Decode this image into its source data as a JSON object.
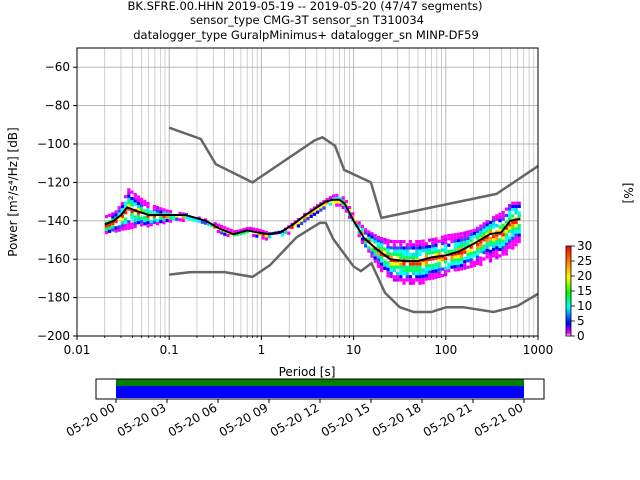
{
  "header": {
    "line1": "BK.SFRE.00.HHN   2019-05-19 -- 2019-05-20  (47/47 segments)",
    "line2": "sensor_type CMG-3T sensor_sn T310034",
    "line3": "datalogger_type GuralpMinimus+ datalogger_sn MINP-DF59"
  },
  "colors": {
    "noise_model": "#666666",
    "mean_curve": "#000000",
    "grid": "#b0b0b0",
    "coverage_data": "#0000ff",
    "coverage_gaps": "#008000"
  },
  "chart_data": [
    {
      "type": "heatmap",
      "xlabel": "Period [s]",
      "ylabel": "Power [m²/s⁴/Hz] [dB]",
      "xscale": "log",
      "xlim": [
        0.01,
        1000
      ],
      "ylim": [
        -200,
        -50
      ],
      "grid": true,
      "x_tick_labels": [
        "0.01",
        "0.1",
        "1",
        "10",
        "100",
        "1000"
      ],
      "x_ticks": [
        0.01,
        0.1,
        1,
        10,
        100,
        1000
      ],
      "y_ticks": [
        -60,
        -80,
        -100,
        -120,
        -140,
        -160,
        -180,
        -200
      ],
      "colorbar": {
        "label": "[%]",
        "range": [
          0,
          30
        ],
        "ticks": [
          0,
          5,
          10,
          15,
          20,
          25,
          30
        ]
      },
      "noise_model_high": {
        "period": [
          0.1,
          0.22,
          0.32,
          0.8,
          3.8,
          4.6,
          6.3,
          7.9,
          15.4,
          20,
          354.8,
          1000
        ],
        "power": [
          -91.5,
          -97.4,
          -110.5,
          -120,
          -98,
          -96.5,
          -101,
          -113.5,
          -120,
          -138.5,
          -126,
          -111.5
        ]
      },
      "noise_model_low": {
        "period": [
          0.1,
          0.17,
          0.4,
          0.8,
          1.24,
          2.4,
          4.3,
          5,
          6,
          10,
          12,
          15.6,
          21.9,
          31.6,
          45,
          70,
          101,
          154,
          328,
          600,
          1000
        ],
        "power": [
          -168,
          -166.7,
          -166.7,
          -169.2,
          -163.1,
          -148.6,
          -141.1,
          -141.1,
          -149.4,
          -163.8,
          -166.2,
          -162.1,
          -177.5,
          -185,
          -187.5,
          -187.5,
          -185,
          -185,
          -187.5,
          -184.4,
          -178
        ]
      },
      "mean_curve": {
        "period": [
          0.02,
          0.025,
          0.03,
          0.035,
          0.045,
          0.06,
          0.09,
          0.15,
          0.25,
          0.35,
          0.5,
          0.7,
          0.9,
          1.2,
          1.6,
          2.2,
          3,
          4,
          5,
          6,
          7,
          8,
          10,
          13,
          18,
          25,
          35,
          50,
          70,
          100,
          140,
          200,
          300,
          400,
          500,
          640
        ],
        "power": [
          -142,
          -140,
          -137,
          -133,
          -135,
          -137,
          -137,
          -137,
          -140,
          -144,
          -147,
          -145,
          -146,
          -147,
          -146,
          -142,
          -137,
          -133,
          -130,
          -129,
          -129,
          -131,
          -140,
          -149,
          -155,
          -160,
          -161,
          -161,
          -159,
          -158,
          -156,
          -152,
          -147,
          -146,
          -140,
          -139
        ]
      },
      "psd_clouds": [
        {
          "period": [
            0.02,
            0.025,
            0.03,
            0.035,
            0.045,
            0.06,
            0.09,
            0.15,
            0.25,
            0.35,
            0.5,
            0.7,
            0.9,
            1.2,
            1.6,
            2.2,
            3,
            4,
            5,
            6,
            7,
            8,
            10,
            13,
            18,
            25,
            35,
            50,
            70,
            100,
            140,
            200,
            300,
            400,
            500,
            640
          ],
          "power": [
            -137,
            -135,
            -130,
            -123,
            -127,
            -131,
            -134,
            -136,
            -139,
            -142,
            -145,
            -143,
            -144,
            -146,
            -145,
            -140,
            -135,
            -131,
            -128,
            -126,
            -126,
            -129,
            -138,
            -144,
            -148,
            -150,
            -150,
            -150,
            -149,
            -147,
            -146,
            -144,
            -138,
            -135,
            -130,
            -130
          ],
          "percent": 1
        },
        {
          "period": [
            0.02,
            0.025,
            0.03,
            0.035,
            0.045,
            0.06,
            0.09,
            0.15,
            0.25,
            0.35,
            0.5,
            0.7,
            0.9,
            1.2,
            1.6,
            2.2,
            3,
            4,
            5,
            6,
            7,
            8,
            10,
            13,
            18,
            25,
            35,
            50,
            70,
            100,
            140,
            200,
            300,
            400,
            500,
            640
          ],
          "power": [
            -146,
            -145,
            -145,
            -144,
            -142,
            -142,
            -140,
            -139,
            -141,
            -146,
            -148,
            -146,
            -148,
            -149,
            -148,
            -144,
            -139,
            -135,
            -132,
            -131,
            -131,
            -134,
            -143,
            -154,
            -164,
            -171,
            -172,
            -172,
            -170,
            -167,
            -165,
            -163,
            -160,
            -158,
            -154,
            -150
          ],
          "percent": 1
        },
        {
          "period": [
            0.02,
            0.025,
            0.03,
            0.035,
            0.045,
            0.06,
            0.09,
            0.15,
            0.25,
            0.35,
            0.5,
            0.7,
            0.9,
            1.2,
            1.6,
            2.2,
            3,
            4,
            5,
            6,
            7,
            8,
            10,
            13,
            18,
            25,
            35,
            50,
            70,
            100,
            140,
            200,
            300,
            400,
            500,
            640
          ],
          "power": [
            -140,
            -138,
            -134,
            -129,
            -131,
            -134,
            -135,
            -137,
            -140,
            -143,
            -146,
            -144,
            -145,
            -147,
            -146,
            -141,
            -136,
            -132,
            -129,
            -127,
            -128,
            -130,
            -139,
            -147,
            -152,
            -156,
            -156,
            -156,
            -154,
            -152,
            -150,
            -148,
            -143,
            -140,
            -136,
            -135
          ],
          "percent": 10
        },
        {
          "period": [
            0.02,
            0.025,
            0.03,
            0.035,
            0.045,
            0.06,
            0.09,
            0.15,
            0.25,
            0.35,
            0.5,
            0.7,
            0.9,
            1.2,
            1.6,
            2.2,
            3,
            4,
            5,
            6,
            7,
            8,
            10,
            13,
            18,
            25,
            35,
            50,
            70,
            100,
            140,
            200,
            300,
            400,
            500,
            640
          ],
          "power": [
            -144,
            -142,
            -141,
            -139,
            -139,
            -140,
            -139,
            -138,
            -141,
            -145,
            -147,
            -145,
            -147,
            -148,
            -147,
            -143,
            -138,
            -134,
            -131,
            -130,
            -130,
            -133,
            -141,
            -151,
            -160,
            -166,
            -166,
            -166,
            -164,
            -162,
            -160,
            -157,
            -152,
            -150,
            -146,
            -143
          ],
          "percent": 12
        },
        {
          "period": [
            0.02,
            0.025,
            0.03,
            0.035,
            0.045,
            0.06,
            0.09,
            0.15,
            0.25,
            0.35,
            0.5,
            0.7,
            0.9,
            1.2,
            1.6,
            2.2,
            3,
            4,
            5,
            6,
            7,
            8,
            10,
            13,
            18,
            25,
            35,
            50,
            70,
            100,
            140,
            200,
            300,
            400,
            500,
            640
          ],
          "power": [
            -142,
            -140,
            -137,
            -133,
            -135,
            -137,
            -137,
            -137,
            -140,
            -144,
            -147,
            -145,
            -146,
            -147,
            -146,
            -142,
            -137,
            -133,
            -130,
            -129,
            -129,
            -131,
            -140,
            -149,
            -155,
            -160,
            -161,
            -161,
            -159,
            -158,
            -156,
            -152,
            -147,
            -146,
            -140,
            -139
          ],
          "percent": 25
        }
      ]
    },
    {
      "type": "bar",
      "x_tick_labels": [
        "05-20 00",
        "05-20 03",
        "05-20 06",
        "05-20 09",
        "05-20 12",
        "05-20 15",
        "05-20 18",
        "05-20 21",
        "05-21 00"
      ],
      "coverage": {
        "start": "05-20 00",
        "end": "05-21 00",
        "rows": [
          "gaps",
          "data"
        ]
      }
    }
  ]
}
